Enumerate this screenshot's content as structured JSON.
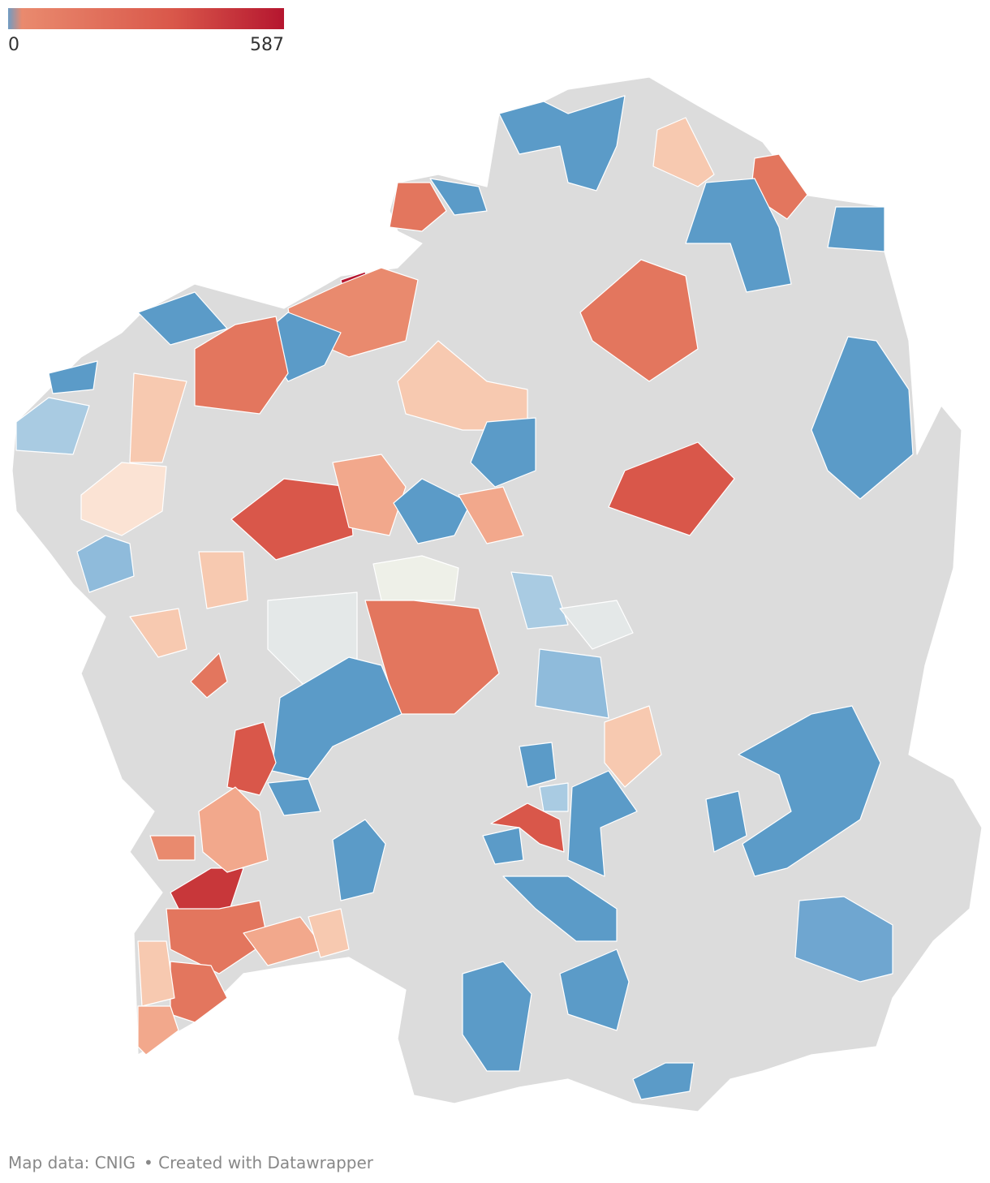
{
  "legend": {
    "min": 0,
    "max": 587,
    "colors": [
      "#6f9cc4",
      "#e98a6e",
      "#d9574a",
      "#b5162f"
    ]
  },
  "footer": {
    "source": "Map data: CNIG",
    "credit": "• Created with Datawrapper"
  }
}
